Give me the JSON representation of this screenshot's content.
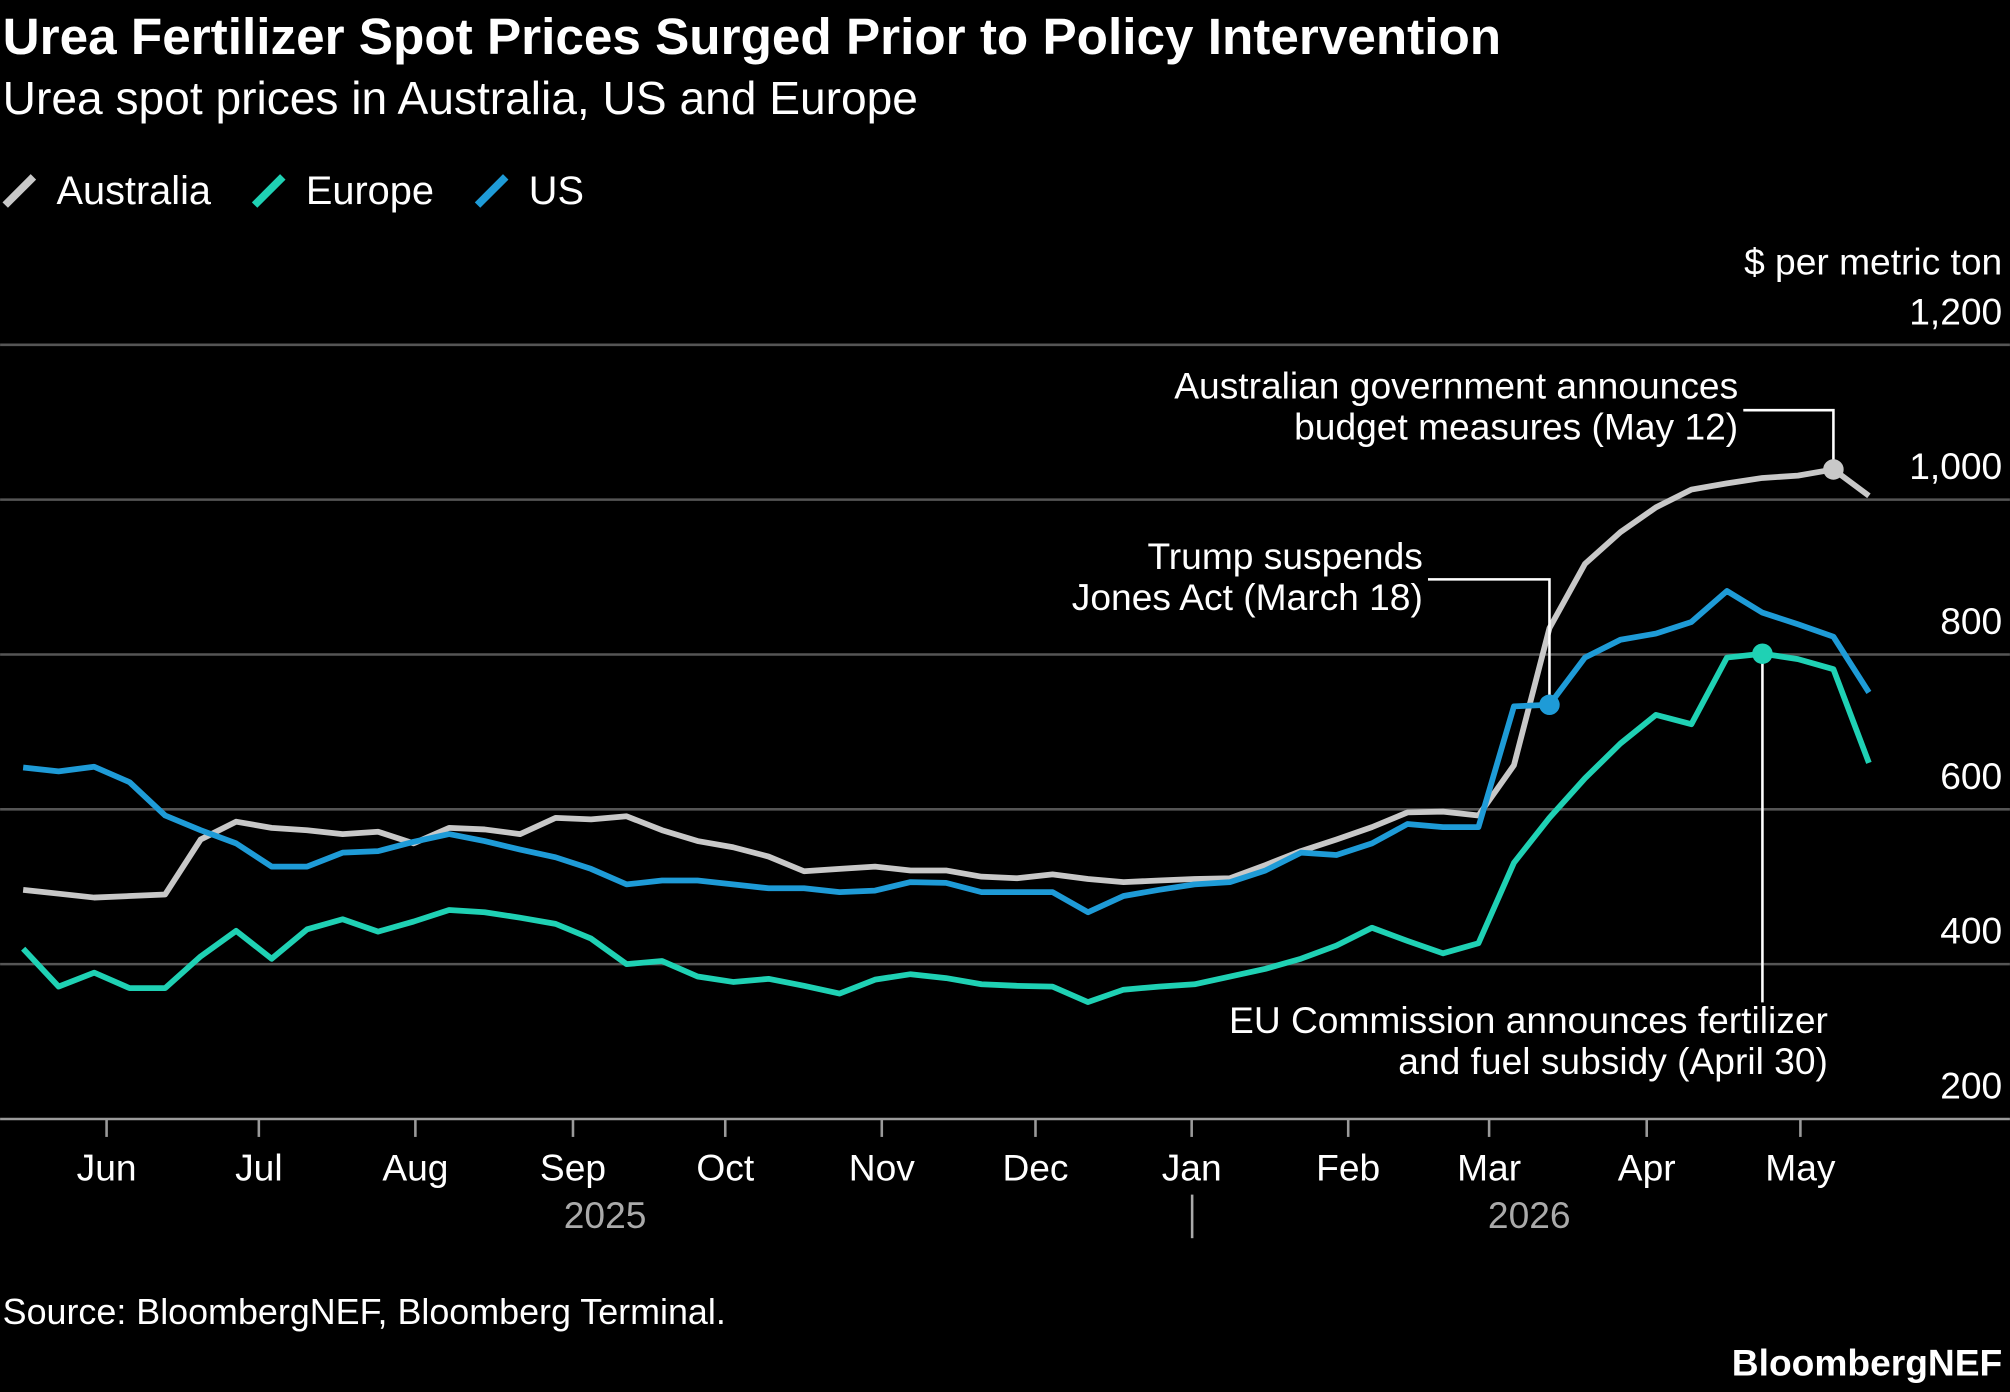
{
  "chart_data": {
    "type": "line",
    "title": "Urea Fertilizer Spot Prices Surged Prior to Policy Intervention",
    "subtitle": "Urea spot prices in Australia, US and Europe",
    "y_axis_label": "$ per metric ton",
    "source": "Source: BloombergNEF, Bloomberg Terminal.",
    "brand": "BloombergNEF",
    "year_labels": [
      "2025",
      "2026"
    ],
    "xlim": [
      0,
      52
    ],
    "xticks": [
      {
        "value": 2.35,
        "label": "Jun"
      },
      {
        "value": 6.64,
        "label": "Jul"
      },
      {
        "value": 11.05,
        "label": "Aug"
      },
      {
        "value": 15.49,
        "label": "Sep"
      },
      {
        "value": 19.78,
        "label": "Oct"
      },
      {
        "value": 24.19,
        "label": "Nov"
      },
      {
        "value": 28.52,
        "label": "Dec"
      },
      {
        "value": 32.92,
        "label": "Jan"
      },
      {
        "value": 37.33,
        "label": "Feb"
      },
      {
        "value": 41.3,
        "label": "Mar"
      },
      {
        "value": 45.74,
        "label": "Apr"
      },
      {
        "value": 50.07,
        "label": "May"
      }
    ],
    "ylim": [
      200,
      1200
    ],
    "yticks": [
      200,
      400,
      600,
      800,
      {
        "value": 1000,
        "label": "1,000"
      },
      {
        "value": 1200,
        "label": "1,200"
      }
    ],
    "grid": true,
    "legend": "top-left",
    "series": [
      {
        "name": "Australia",
        "color": "#c8c8c8",
        "values": [
          496,
          491,
          486,
          488,
          490,
          561,
          584,
          576,
          573,
          568,
          571,
          556,
          576,
          574,
          568,
          589,
          587,
          591,
          573,
          559,
          551,
          539,
          520,
          523,
          526,
          521,
          521,
          513,
          511,
          516,
          510,
          506,
          508,
          510,
          511,
          528,
          546,
          561,
          577,
          596,
          597,
          592,
          657,
          834,
          917,
          958,
          990,
          1013,
          1021,
          1028,
          1031,
          1039,
          1005
        ]
      },
      {
        "name": "Europe",
        "color": "#1fd1b4",
        "values": [
          420,
          371,
          389,
          369,
          369,
          410,
          443,
          407,
          445,
          458,
          442,
          455,
          470,
          467,
          460,
          452,
          433,
          400,
          404,
          384,
          377,
          381,
          372,
          362,
          380,
          387,
          382,
          374,
          372,
          371,
          351,
          367,
          371,
          374,
          384,
          394,
          407,
          424,
          447,
          430,
          414,
          427,
          531,
          589,
          640,
          685,
          722,
          710,
          796,
          801,
          794,
          781,
          660
        ]
      },
      {
        "name": "US",
        "color": "#1e9bd7",
        "values": [
          654,
          649,
          655,
          635,
          592,
          573,
          556,
          526,
          526,
          544,
          546,
          558,
          568,
          559,
          548,
          538,
          523,
          503,
          508,
          508,
          503,
          498,
          498,
          493,
          495,
          506,
          505,
          493,
          493,
          493,
          467,
          488,
          496,
          503,
          506,
          521,
          544,
          541,
          556,
          581,
          577,
          577,
          733,
          735,
          796,
          819,
          827,
          842,
          882,
          854,
          839,
          823,
          751
        ]
      }
    ],
    "annotations": [
      {
        "text": [
          "Australian government announces",
          "budget measures (May 12)"
        ]
      },
      {
        "text": [
          "Trump suspends",
          "Jones Act (March 18)"
        ]
      },
      {
        "text": [
          "EU Commission announces fertilizer",
          "and fuel subsidy (April 30)"
        ]
      }
    ]
  }
}
